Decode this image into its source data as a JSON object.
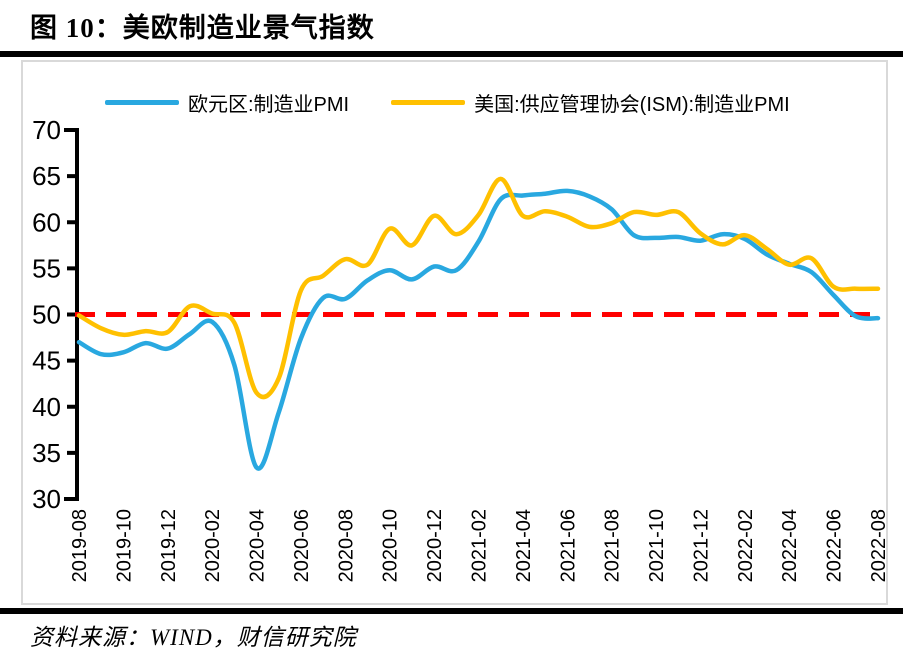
{
  "header": {
    "title": "图 10：美欧制造业景气指数"
  },
  "footer": {
    "source": "资料来源：WIND，财信研究院"
  },
  "colors": {
    "eurozone": "#29A8E0",
    "us_ism": "#FFC000",
    "threshold": "#FF0000",
    "axis": "#000000",
    "panel_border": "#D9D9D9"
  },
  "chart_data": {
    "type": "line",
    "title": "美欧制造业景气指数",
    "x": [
      "2019-08",
      "2019-09",
      "2019-10",
      "2019-11",
      "2019-12",
      "2020-01",
      "2020-02",
      "2020-03",
      "2020-04",
      "2020-05",
      "2020-06",
      "2020-07",
      "2020-08",
      "2020-09",
      "2020-10",
      "2020-11",
      "2020-12",
      "2021-01",
      "2021-02",
      "2021-03",
      "2021-04",
      "2021-05",
      "2021-06",
      "2021-07",
      "2021-08",
      "2021-09",
      "2021-10",
      "2021-11",
      "2021-12",
      "2022-01",
      "2022-02",
      "2022-03",
      "2022-04",
      "2022-05",
      "2022-06",
      "2022-07",
      "2022-08"
    ],
    "x_axis_tick_labels": [
      "2019-08",
      "2019-10",
      "2019-12",
      "2020-02",
      "2020-04",
      "2020-06",
      "2020-08",
      "2020-10",
      "2020-12",
      "2021-02",
      "2021-04",
      "2021-06",
      "2021-08",
      "2021-10",
      "2021-12",
      "2022-02",
      "2022-04",
      "2022-06",
      "2022-08"
    ],
    "series": [
      {
        "name": "欧元区:制造业PMI",
        "color": "#29A8E0",
        "values": [
          47.0,
          45.7,
          45.9,
          46.9,
          46.3,
          47.9,
          49.2,
          44.5,
          33.4,
          39.4,
          47.4,
          51.8,
          51.7,
          53.7,
          54.8,
          53.8,
          55.2,
          54.8,
          57.9,
          62.5,
          62.9,
          63.1,
          63.4,
          62.8,
          61.4,
          58.6,
          58.3,
          58.4,
          58.0,
          58.7,
          58.2,
          56.5,
          55.5,
          54.6,
          52.1,
          49.8,
          49.6
        ]
      },
      {
        "name": "美国:供应管理协会(ISM):制造业PMI",
        "color": "#FFC000",
        "values": [
          49.9,
          48.5,
          47.8,
          48.2,
          48.1,
          50.9,
          50.1,
          49.1,
          41.5,
          43.1,
          52.6,
          54.2,
          56.0,
          55.4,
          59.3,
          57.5,
          60.7,
          58.7,
          60.8,
          64.7,
          60.7,
          61.2,
          60.6,
          59.5,
          59.9,
          61.1,
          60.8,
          61.1,
          58.8,
          57.6,
          58.6,
          57.1,
          55.4,
          56.1,
          53.0,
          52.8,
          52.8
        ]
      }
    ],
    "reference_line": {
      "value": 50,
      "color": "#FF0000",
      "style": "dashed"
    },
    "ylim": [
      30,
      70
    ],
    "yticks": [
      30,
      35,
      40,
      45,
      50,
      55,
      60,
      65,
      70
    ],
    "grid": false,
    "legend_position": "top-center"
  }
}
